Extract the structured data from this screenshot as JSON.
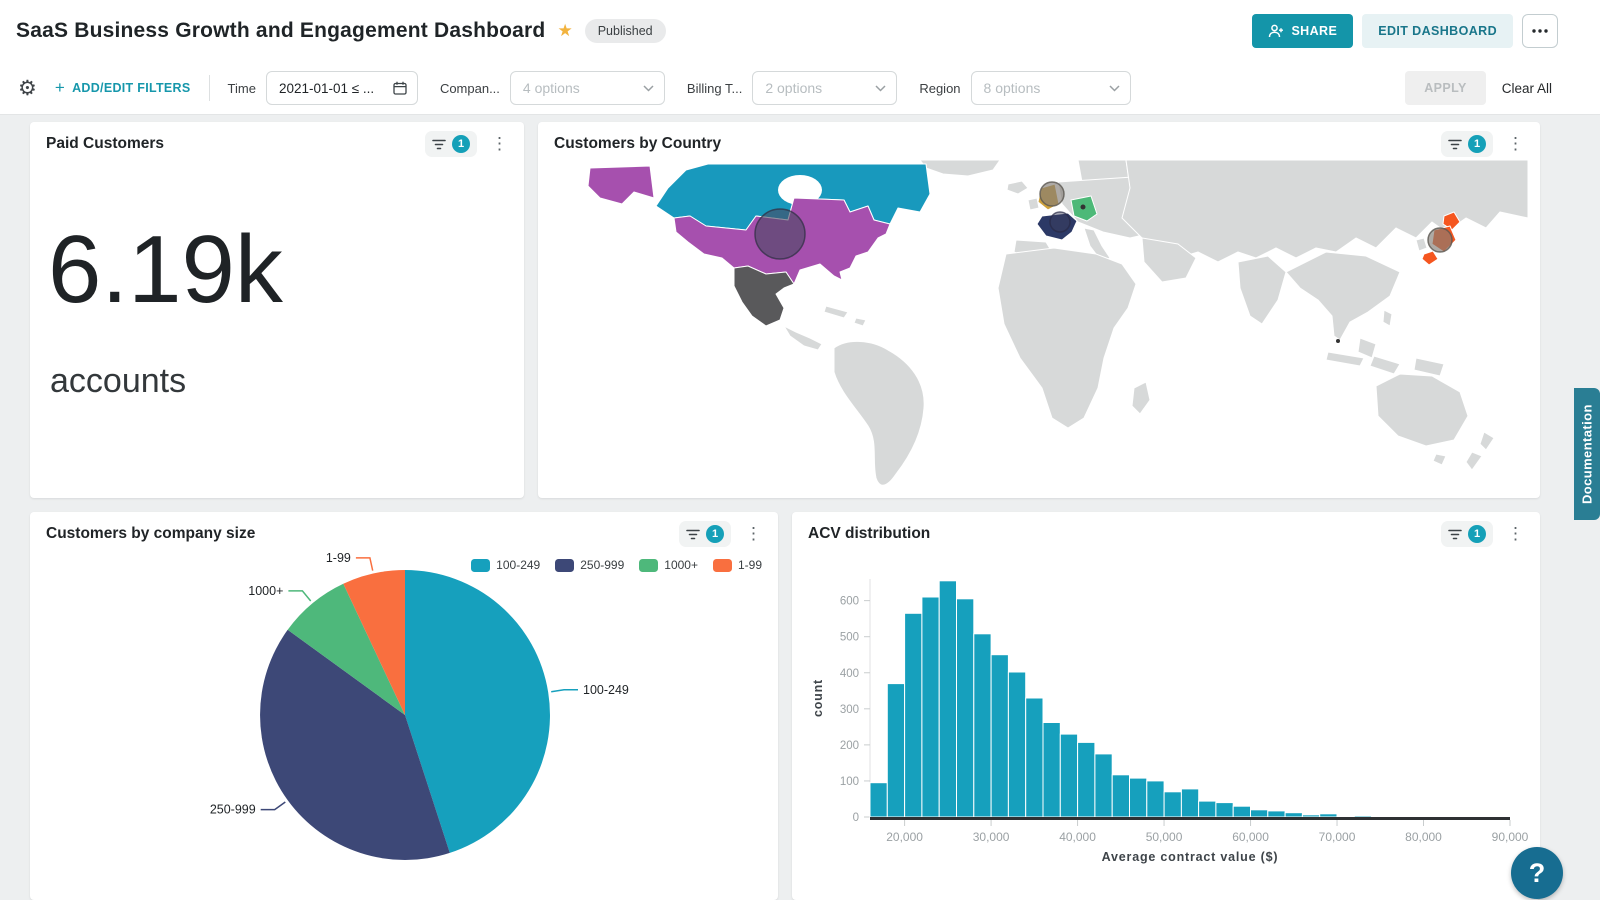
{
  "header": {
    "title": "SaaS Business Growth and Engagement Dashboard",
    "status_badge": "Published",
    "share_button": "SHARE",
    "edit_button": "EDIT DASHBOARD"
  },
  "icons": {
    "gear_glyph": "⚙",
    "star_glyph": "★",
    "kebab_glyph": "⋮",
    "help_glyph": "?",
    "share": "person-plus",
    "more": "horizontal-ellipsis",
    "filter_chip": "funnel",
    "calendar": "calendar",
    "select": "chevron-down"
  },
  "filter_bar": {
    "plus": "+",
    "add_edit_filters": "ADD/EDIT FILTERS",
    "time": {
      "label": "Time",
      "value": "2021-01-01 ≤ ..."
    },
    "company": {
      "label": "Compan...",
      "value": "4 options"
    },
    "billing": {
      "label": "Billing T...",
      "value": "2 options"
    },
    "region": {
      "label": "Region",
      "value": "8 options"
    },
    "apply_button": "APPLY",
    "clear_all": "Clear All"
  },
  "kpi_card": {
    "title": "Paid Customers",
    "filter_count": "1",
    "value": "6.19k",
    "unit": "accounts"
  },
  "map_card": {
    "title": "Customers by Country",
    "filter_count": "1"
  },
  "pie_card": {
    "title": "Customers by company size",
    "filter_count": "1"
  },
  "hist_card": {
    "title": "ACV distribution",
    "filter_count": "1"
  },
  "side": {
    "documentation_tab": "Documentation"
  },
  "chart_data": [
    {
      "type": "map",
      "title": "Customers by Country",
      "base_color": "#d7d9d9",
      "highlighted_countries": [
        {
          "key": "canada",
          "country": "Canada",
          "color": "#1899bd"
        },
        {
          "key": "usa",
          "country": "United States",
          "color": "#a650ae",
          "bubble": "large"
        },
        {
          "key": "mexico",
          "country": "Mexico",
          "color": "#59595b"
        },
        {
          "key": "uk",
          "country": "United Kingdom",
          "color": "#cfa23b",
          "bubble": "medium"
        },
        {
          "key": "france",
          "country": "France",
          "color": "#2c3966",
          "bubble": "medium"
        },
        {
          "key": "germany",
          "country": "Germany",
          "color": "#4db978",
          "bubble": "dot"
        },
        {
          "key": "japan",
          "country": "Japan",
          "color": "#f5561f",
          "bubble": "medium"
        },
        {
          "key": "singapore",
          "country": "Singapore",
          "color": "#3a3a3a",
          "bubble": "dot"
        }
      ]
    },
    {
      "type": "pie",
      "title": "Customers by company size",
      "labels": [
        "100-249",
        "250-999",
        "1000+",
        "1-99"
      ],
      "values_pct": [
        45,
        40,
        8,
        7
      ],
      "colors": [
        "#16a0bd",
        "#3d4877",
        "#4eb87b",
        "#f96f3f"
      ],
      "legend_position": "top-right"
    },
    {
      "type": "bar",
      "subtype": "histogram",
      "title": "ACV distribution",
      "xlabel": "Average contract value ($)",
      "ylabel": "count",
      "bar_color": "#16a0bd",
      "bin_start": 16000,
      "bin_width": 2000,
      "counts": [
        95,
        370,
        565,
        610,
        655,
        605,
        508,
        450,
        402,
        330,
        262,
        230,
        207,
        175,
        117,
        108,
        100,
        70,
        78,
        44,
        40,
        30,
        20,
        17,
        12,
        6,
        9,
        1,
        4,
        1,
        0,
        0,
        0,
        0,
        0,
        0,
        0
      ],
      "xlim": [
        16000,
        90000
      ],
      "ylim": [
        0,
        660
      ],
      "x_tick_values": [
        20000,
        30000,
        40000,
        50000,
        60000,
        70000,
        80000,
        90000
      ],
      "x_tick_labels": [
        "20,000",
        "30,000",
        "40,000",
        "50,000",
        "60,000",
        "70,000",
        "80,000",
        "90,000"
      ],
      "y_ticks": [
        0,
        100,
        200,
        300,
        400,
        500,
        600
      ],
      "grid": false
    }
  ]
}
